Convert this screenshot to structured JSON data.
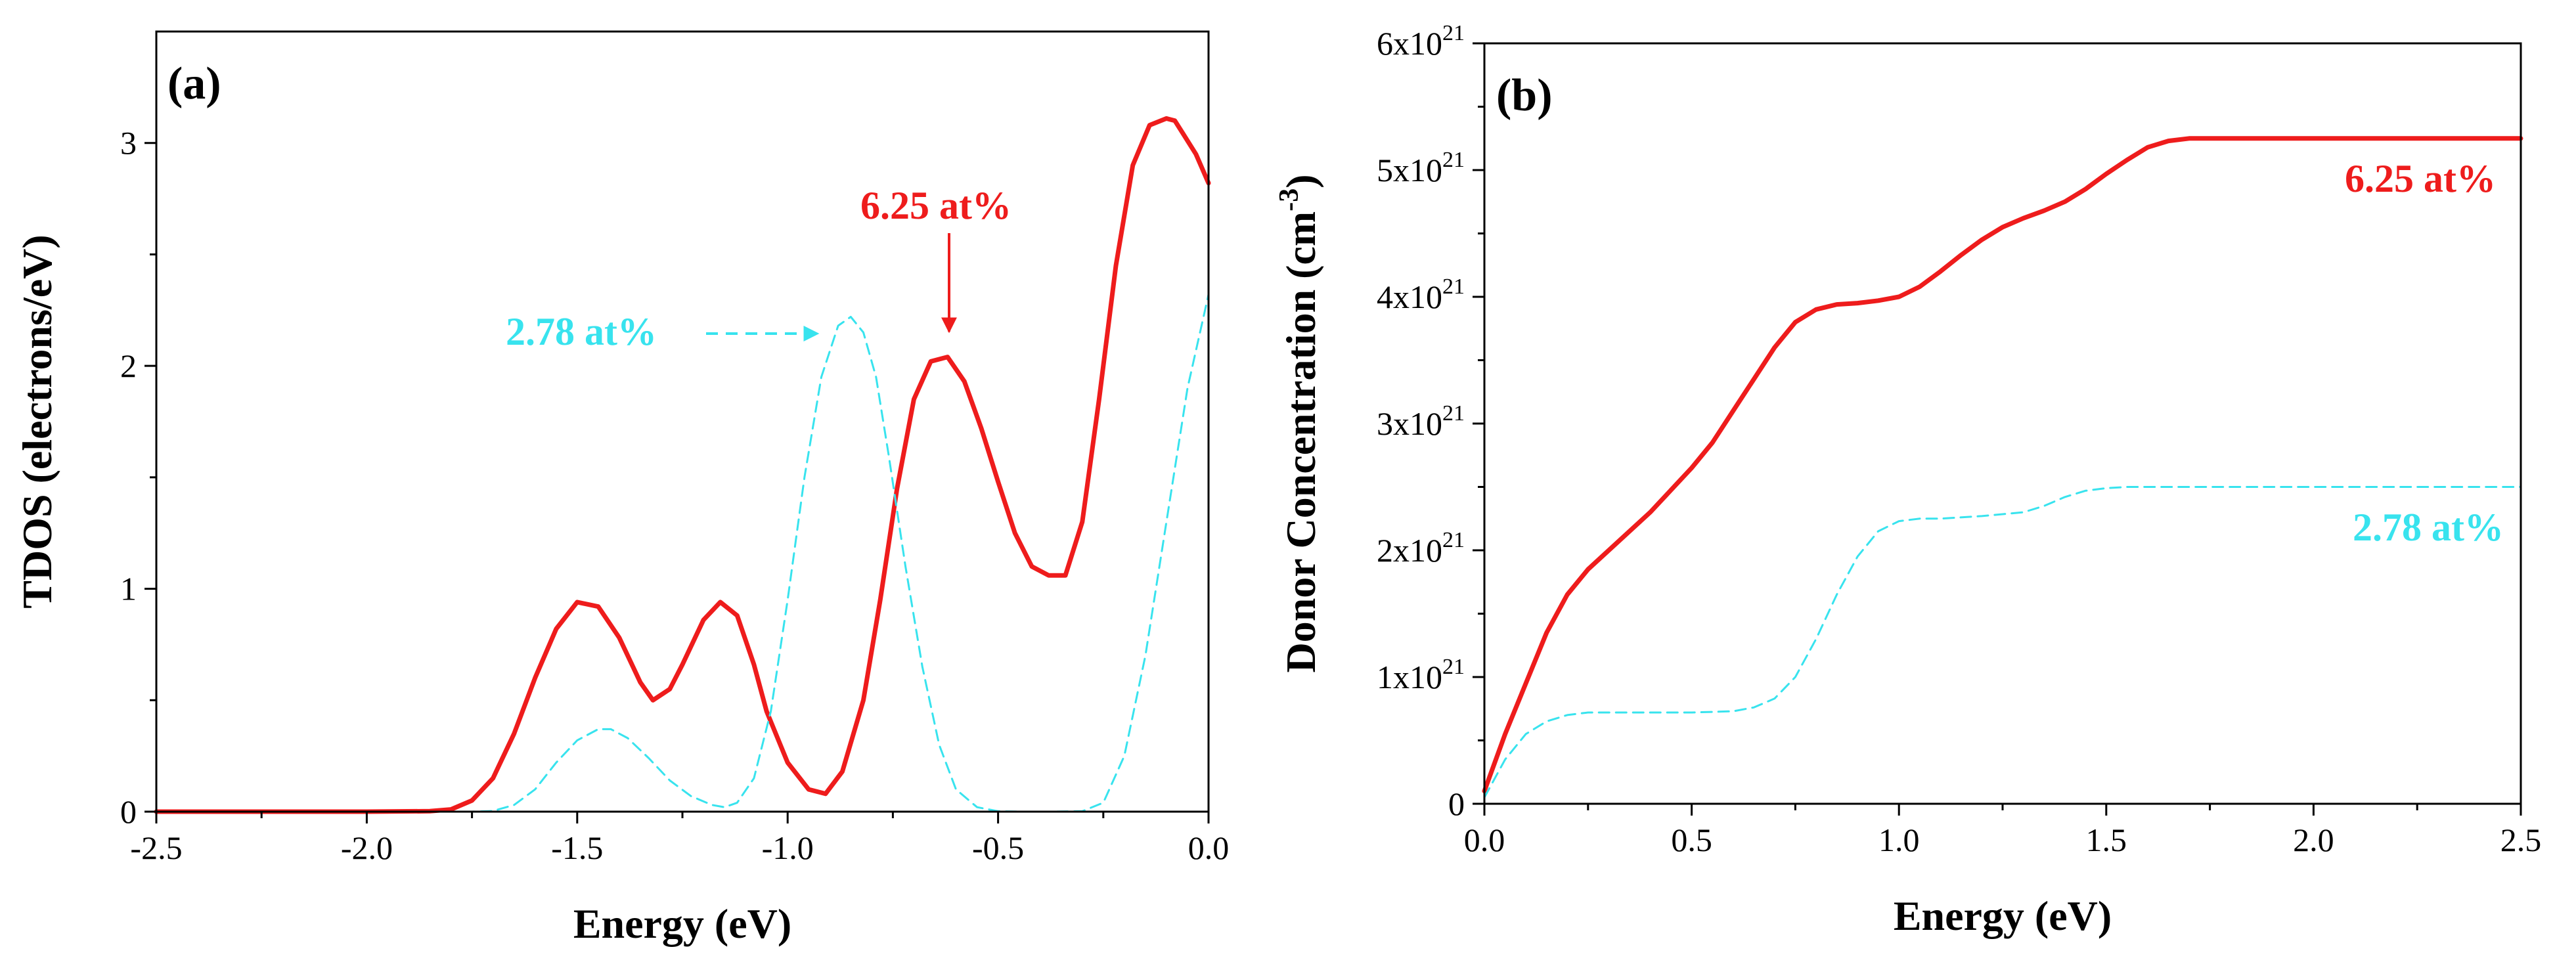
{
  "figure": {
    "panel_a_label": "(a)",
    "panel_b_label": "(b)"
  },
  "chart_data": [
    {
      "panel": "(a)",
      "type": "line",
      "title": "",
      "xlabel": "Energy (eV)",
      "ylabel": "TDOS (electrons/eV)",
      "xlim": [
        -2.5,
        0.0
      ],
      "ylim": [
        0,
        3.5
      ],
      "xticks": [
        -2.5,
        -2.0,
        -1.5,
        -1.0,
        -0.5,
        0.0
      ],
      "xtick_labels": [
        "-2.5",
        "-2.0",
        "-1.5",
        "-1.0",
        "-0.5",
        "0.0"
      ],
      "yticks": [
        0,
        1,
        2,
        3
      ],
      "ytick_labels": [
        "0",
        "1",
        "2",
        "3"
      ],
      "grid": false,
      "series": [
        {
          "name": "6.25 at%",
          "color": "#ee1c1c",
          "style": "solid",
          "x": [
            -2.5,
            -2.0,
            -1.85,
            -1.8,
            -1.75,
            -1.7,
            -1.65,
            -1.6,
            -1.55,
            -1.5,
            -1.45,
            -1.4,
            -1.35,
            -1.32,
            -1.28,
            -1.25,
            -1.2,
            -1.16,
            -1.12,
            -1.08,
            -1.05,
            -1.0,
            -0.95,
            -0.91,
            -0.87,
            -0.82,
            -0.78,
            -0.74,
            -0.7,
            -0.66,
            -0.62,
            -0.58,
            -0.54,
            -0.5,
            -0.46,
            -0.42,
            -0.38,
            -0.34,
            -0.3,
            -0.26,
            -0.22,
            -0.18,
            -0.14,
            -0.1,
            -0.08,
            -0.06,
            -0.03,
            0.0
          ],
          "y": [
            0,
            0,
            0.002,
            0.01,
            0.05,
            0.15,
            0.35,
            0.6,
            0.82,
            0.94,
            0.92,
            0.78,
            0.58,
            0.5,
            0.55,
            0.66,
            0.86,
            0.94,
            0.88,
            0.66,
            0.45,
            0.22,
            0.1,
            0.08,
            0.18,
            0.5,
            0.95,
            1.45,
            1.85,
            2.02,
            2.04,
            1.93,
            1.72,
            1.48,
            1.25,
            1.1,
            1.06,
            1.06,
            1.3,
            1.85,
            2.45,
            2.9,
            3.08,
            3.11,
            3.1,
            3.04,
            2.95,
            2.82
          ]
        },
        {
          "name": "2.78 at%",
          "color": "#38e3ee",
          "style": "dashed",
          "x": [
            -2.5,
            -1.75,
            -1.7,
            -1.65,
            -1.6,
            -1.55,
            -1.5,
            -1.45,
            -1.42,
            -1.38,
            -1.33,
            -1.28,
            -1.23,
            -1.18,
            -1.15,
            -1.12,
            -1.08,
            -1.04,
            -1.0,
            -0.96,
            -0.92,
            -0.88,
            -0.85,
            -0.82,
            -0.79,
            -0.76,
            -0.72,
            -0.68,
            -0.64,
            -0.6,
            -0.55,
            -0.5,
            -0.45,
            -0.38,
            -0.3,
            -0.25,
            -0.2,
            -0.15,
            -0.1,
            -0.05,
            0.0
          ],
          "y": [
            0,
            0,
            0.003,
            0.03,
            0.1,
            0.22,
            0.32,
            0.37,
            0.37,
            0.33,
            0.24,
            0.14,
            0.07,
            0.03,
            0.02,
            0.04,
            0.15,
            0.45,
            0.95,
            1.5,
            1.95,
            2.18,
            2.22,
            2.15,
            1.95,
            1.6,
            1.1,
            0.65,
            0.3,
            0.1,
            0.02,
            0.002,
            0,
            0,
            0.002,
            0.04,
            0.25,
            0.7,
            1.3,
            1.9,
            2.32
          ]
        }
      ],
      "annotations": [
        {
          "text": "6.25 at%",
          "color": "#ee1c1c",
          "arrow_to": [
            -0.61,
            2.07
          ]
        },
        {
          "text": "2.78 at%",
          "color": "#38e3ee",
          "arrow_to": [
            -0.86,
            2.16
          ]
        }
      ]
    },
    {
      "panel": "(b)",
      "type": "line",
      "title": "",
      "xlabel": "Energy (eV)",
      "ylabel": "Donor Concentration (cm",
      "ylabel_superscript": "-3",
      "ylabel_close": ")",
      "xlim": [
        0.0,
        2.5
      ],
      "ylim": [
        0,
        6e+21
      ],
      "xticks": [
        0.0,
        0.5,
        1.0,
        1.5,
        2.0,
        2.5
      ],
      "xtick_labels": [
        "0.0",
        "0.5",
        "1.0",
        "1.5",
        "2.0",
        "2.5"
      ],
      "yticks": [
        0,
        1e+21,
        2e+21,
        3e+21,
        4e+21,
        5e+21,
        6e+21
      ],
      "ytick_labels": [
        {
          "base": "0",
          "exp": ""
        },
        {
          "base": "1x10",
          "exp": "21"
        },
        {
          "base": "2x10",
          "exp": "21"
        },
        {
          "base": "3x10",
          "exp": "21"
        },
        {
          "base": "4x10",
          "exp": "21"
        },
        {
          "base": "5x10",
          "exp": "21"
        },
        {
          "base": "6x10",
          "exp": "21"
        }
      ],
      "grid": false,
      "series": [
        {
          "name": "6.25 at%",
          "color": "#ee1c1c",
          "style": "solid",
          "x": [
            0.0,
            0.05,
            0.1,
            0.15,
            0.2,
            0.25,
            0.3,
            0.4,
            0.5,
            0.55,
            0.6,
            0.65,
            0.7,
            0.75,
            0.8,
            0.85,
            0.9,
            0.95,
            1.0,
            1.05,
            1.1,
            1.15,
            1.2,
            1.25,
            1.3,
            1.35,
            1.4,
            1.45,
            1.5,
            1.55,
            1.6,
            1.65,
            1.7,
            1.75,
            2.0,
            2.5
          ],
          "y": [
            1e+20,
            5.5e+20,
            9.5e+20,
            1.35e+21,
            1.65e+21,
            1.85e+21,
            2e+21,
            2.3e+21,
            2.65e+21,
            2.85e+21,
            3.1e+21,
            3.35e+21,
            3.6e+21,
            3.8e+21,
            3.9e+21,
            3.94e+21,
            3.95e+21,
            3.97e+21,
            4e+21,
            4.08e+21,
            4.2e+21,
            4.33e+21,
            4.45e+21,
            4.55e+21,
            4.62e+21,
            4.68e+21,
            4.75e+21,
            4.85e+21,
            4.97e+21,
            5.08e+21,
            5.18e+21,
            5.23e+21,
            5.25e+21,
            5.25e+21,
            5.25e+21,
            5.25e+21
          ]
        },
        {
          "name": "2.78 at%",
          "color": "#38e3ee",
          "style": "dashed",
          "x": [
            0.0,
            0.05,
            0.1,
            0.15,
            0.2,
            0.25,
            0.35,
            0.5,
            0.6,
            0.65,
            0.7,
            0.75,
            0.8,
            0.85,
            0.9,
            0.95,
            1.0,
            1.05,
            1.1,
            1.2,
            1.3,
            1.35,
            1.4,
            1.45,
            1.5,
            1.55,
            1.6,
            2.0,
            2.5
          ],
          "y": [
            5e+19,
            3.5e+20,
            5.5e+20,
            6.5e+20,
            7e+20,
            7.2e+20,
            7.2e+20,
            7.2e+20,
            7.3e+20,
            7.6e+20,
            8.3e+20,
            1e+21,
            1.3e+21,
            1.65e+21,
            1.95e+21,
            2.15e+21,
            2.23e+21,
            2.25e+21,
            2.25e+21,
            2.27e+21,
            2.3e+21,
            2.35e+21,
            2.42e+21,
            2.47e+21,
            2.49e+21,
            2.5e+21,
            2.5e+21,
            2.5e+21,
            2.5e+21
          ]
        }
      ],
      "annotations": [
        {
          "text": "6.25 at%",
          "color": "#ee1c1c"
        },
        {
          "text": "2.78 at%",
          "color": "#38e3ee"
        }
      ]
    }
  ]
}
